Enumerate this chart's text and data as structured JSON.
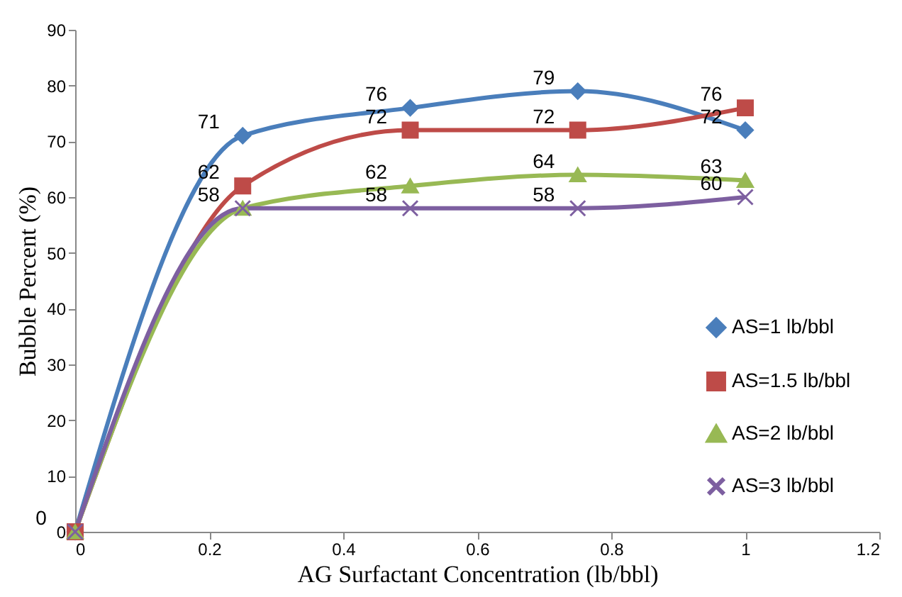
{
  "chart_data": {
    "type": "line",
    "xlabel": "AG Surfactant Concentration (lb/bbl)",
    "ylabel": "Bubble Percent (%)",
    "x": [
      0,
      0.25,
      0.5,
      0.75,
      1
    ],
    "series": [
      {
        "name": "AS=1 lb/bbl",
        "color": "#4a7ebb",
        "marker": "diamond",
        "values": [
          0,
          71,
          76,
          79,
          72
        ]
      },
      {
        "name": "AS=1.5 lb/bbl",
        "color": "#be4b48",
        "marker": "square",
        "values": [
          0,
          62,
          72,
          72,
          76
        ],
        "value_labels": [
          null,
          "62",
          "72",
          "72",
          "76"
        ]
      },
      {
        "name": "AS=2 lb/bbl",
        "color": "#98b954",
        "marker": "triangle",
        "values": [
          0,
          58,
          62,
          64,
          63
        ],
        "value_labels": [
          null,
          "58",
          "62",
          "64",
          "63"
        ]
      },
      {
        "name": "AS=3 lb/bbl",
        "color": "#7d5fa0",
        "marker": "cross",
        "values": [
          0,
          58,
          58,
          58,
          60
        ],
        "value_labels": [
          null,
          null,
          "58",
          "58",
          "60"
        ]
      }
    ],
    "xlim": [
      0,
      1.2
    ],
    "xticks": [
      0,
      0.2,
      0.4,
      0.6,
      0.8,
      1,
      1.2
    ],
    "ylim": [
      0,
      90
    ],
    "yticks": [
      0,
      10,
      20,
      30,
      40,
      50,
      60,
      70,
      80,
      90
    ],
    "data_labels": true,
    "grid": false,
    "legend": "right",
    "line_style": "solid"
  }
}
